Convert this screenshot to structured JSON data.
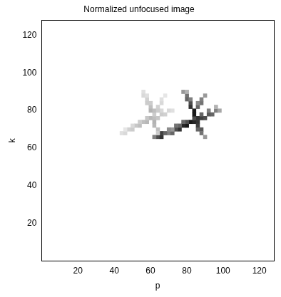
{
  "chart_data": {
    "type": "heatmap",
    "title": "Normalized unfocused image",
    "x_label": "p",
    "y_label": "k",
    "xlim": [
      0,
      128
    ],
    "ylim": [
      0,
      128
    ],
    "xticks": [
      20,
      40,
      60,
      80,
      100,
      120
    ],
    "yticks": [
      20,
      40,
      60,
      80,
      100,
      120
    ],
    "grid": false,
    "cell_range": [
      0,
      1
    ],
    "cells": [
      [
        70,
        68,
        0.5
      ],
      [
        72,
        68,
        0.6
      ],
      [
        74,
        70,
        0.7
      ],
      [
        76,
        70,
        0.8
      ],
      [
        78,
        72,
        0.85
      ],
      [
        80,
        72,
        0.9
      ],
      [
        82,
        74,
        0.9
      ],
      [
        84,
        74,
        0.85
      ],
      [
        86,
        76,
        0.8
      ],
      [
        88,
        76,
        0.75
      ],
      [
        90,
        76,
        0.7
      ],
      [
        92,
        78,
        0.65
      ],
      [
        94,
        78,
        0.6
      ],
      [
        96,
        80,
        0.5
      ],
      [
        98,
        80,
        0.35
      ],
      [
        72,
        70,
        0.4
      ],
      [
        76,
        72,
        0.6
      ],
      [
        80,
        74,
        0.7
      ],
      [
        84,
        76,
        0.7
      ],
      [
        88,
        78,
        0.6
      ],
      [
        92,
        80,
        0.5
      ],
      [
        96,
        82,
        0.3
      ],
      [
        78,
        90,
        0.4
      ],
      [
        80,
        88,
        0.55
      ],
      [
        80,
        86,
        0.6
      ],
      [
        82,
        84,
        0.7
      ],
      [
        82,
        82,
        0.8
      ],
      [
        84,
        80,
        0.9
      ],
      [
        84,
        78,
        0.9
      ],
      [
        86,
        74,
        0.8
      ],
      [
        86,
        72,
        0.75
      ],
      [
        88,
        70,
        0.65
      ],
      [
        88,
        68,
        0.55
      ],
      [
        90,
        66,
        0.4
      ],
      [
        80,
        90,
        0.3
      ],
      [
        82,
        86,
        0.5
      ],
      [
        86,
        70,
        0.6
      ],
      [
        86,
        82,
        0.6
      ],
      [
        88,
        84,
        0.55
      ],
      [
        88,
        86,
        0.5
      ],
      [
        90,
        88,
        0.4
      ],
      [
        86,
        84,
        0.45
      ],
      [
        64,
        66,
        0.7
      ],
      [
        66,
        66,
        0.8
      ],
      [
        66,
        68,
        0.75
      ],
      [
        68,
        68,
        0.6
      ],
      [
        62,
        66,
        0.5
      ],
      [
        70,
        70,
        0.45
      ],
      [
        74,
        72,
        0.55
      ],
      [
        78,
        74,
        0.6
      ],
      [
        44,
        68,
        0.12
      ],
      [
        46,
        68,
        0.15
      ],
      [
        48,
        70,
        0.18
      ],
      [
        50,
        70,
        0.2
      ],
      [
        52,
        72,
        0.22
      ],
      [
        54,
        72,
        0.25
      ],
      [
        56,
        74,
        0.25
      ],
      [
        58,
        74,
        0.28
      ],
      [
        60,
        76,
        0.28
      ],
      [
        62,
        76,
        0.25
      ],
      [
        64,
        76,
        0.22
      ],
      [
        66,
        78,
        0.2
      ],
      [
        68,
        78,
        0.18
      ],
      [
        70,
        80,
        0.15
      ],
      [
        72,
        80,
        0.12
      ],
      [
        46,
        70,
        0.1
      ],
      [
        50,
        72,
        0.15
      ],
      [
        54,
        74,
        0.2
      ],
      [
        58,
        76,
        0.22
      ],
      [
        62,
        78,
        0.2
      ],
      [
        66,
        80,
        0.15
      ],
      [
        56,
        90,
        0.12
      ],
      [
        56,
        88,
        0.15
      ],
      [
        58,
        86,
        0.18
      ],
      [
        58,
        84,
        0.2
      ],
      [
        60,
        82,
        0.25
      ],
      [
        60,
        80,
        0.3
      ],
      [
        62,
        74,
        0.3
      ],
      [
        62,
        72,
        0.28
      ],
      [
        64,
        70,
        0.25
      ],
      [
        64,
        68,
        0.2
      ],
      [
        58,
        88,
        0.12
      ],
      [
        60,
        84,
        0.2
      ],
      [
        62,
        80,
        0.25
      ],
      [
        64,
        82,
        0.18
      ],
      [
        66,
        84,
        0.15
      ],
      [
        66,
        86,
        0.12
      ],
      [
        68,
        88,
        0.1
      ],
      [
        64,
        80,
        0.2
      ]
    ]
  }
}
